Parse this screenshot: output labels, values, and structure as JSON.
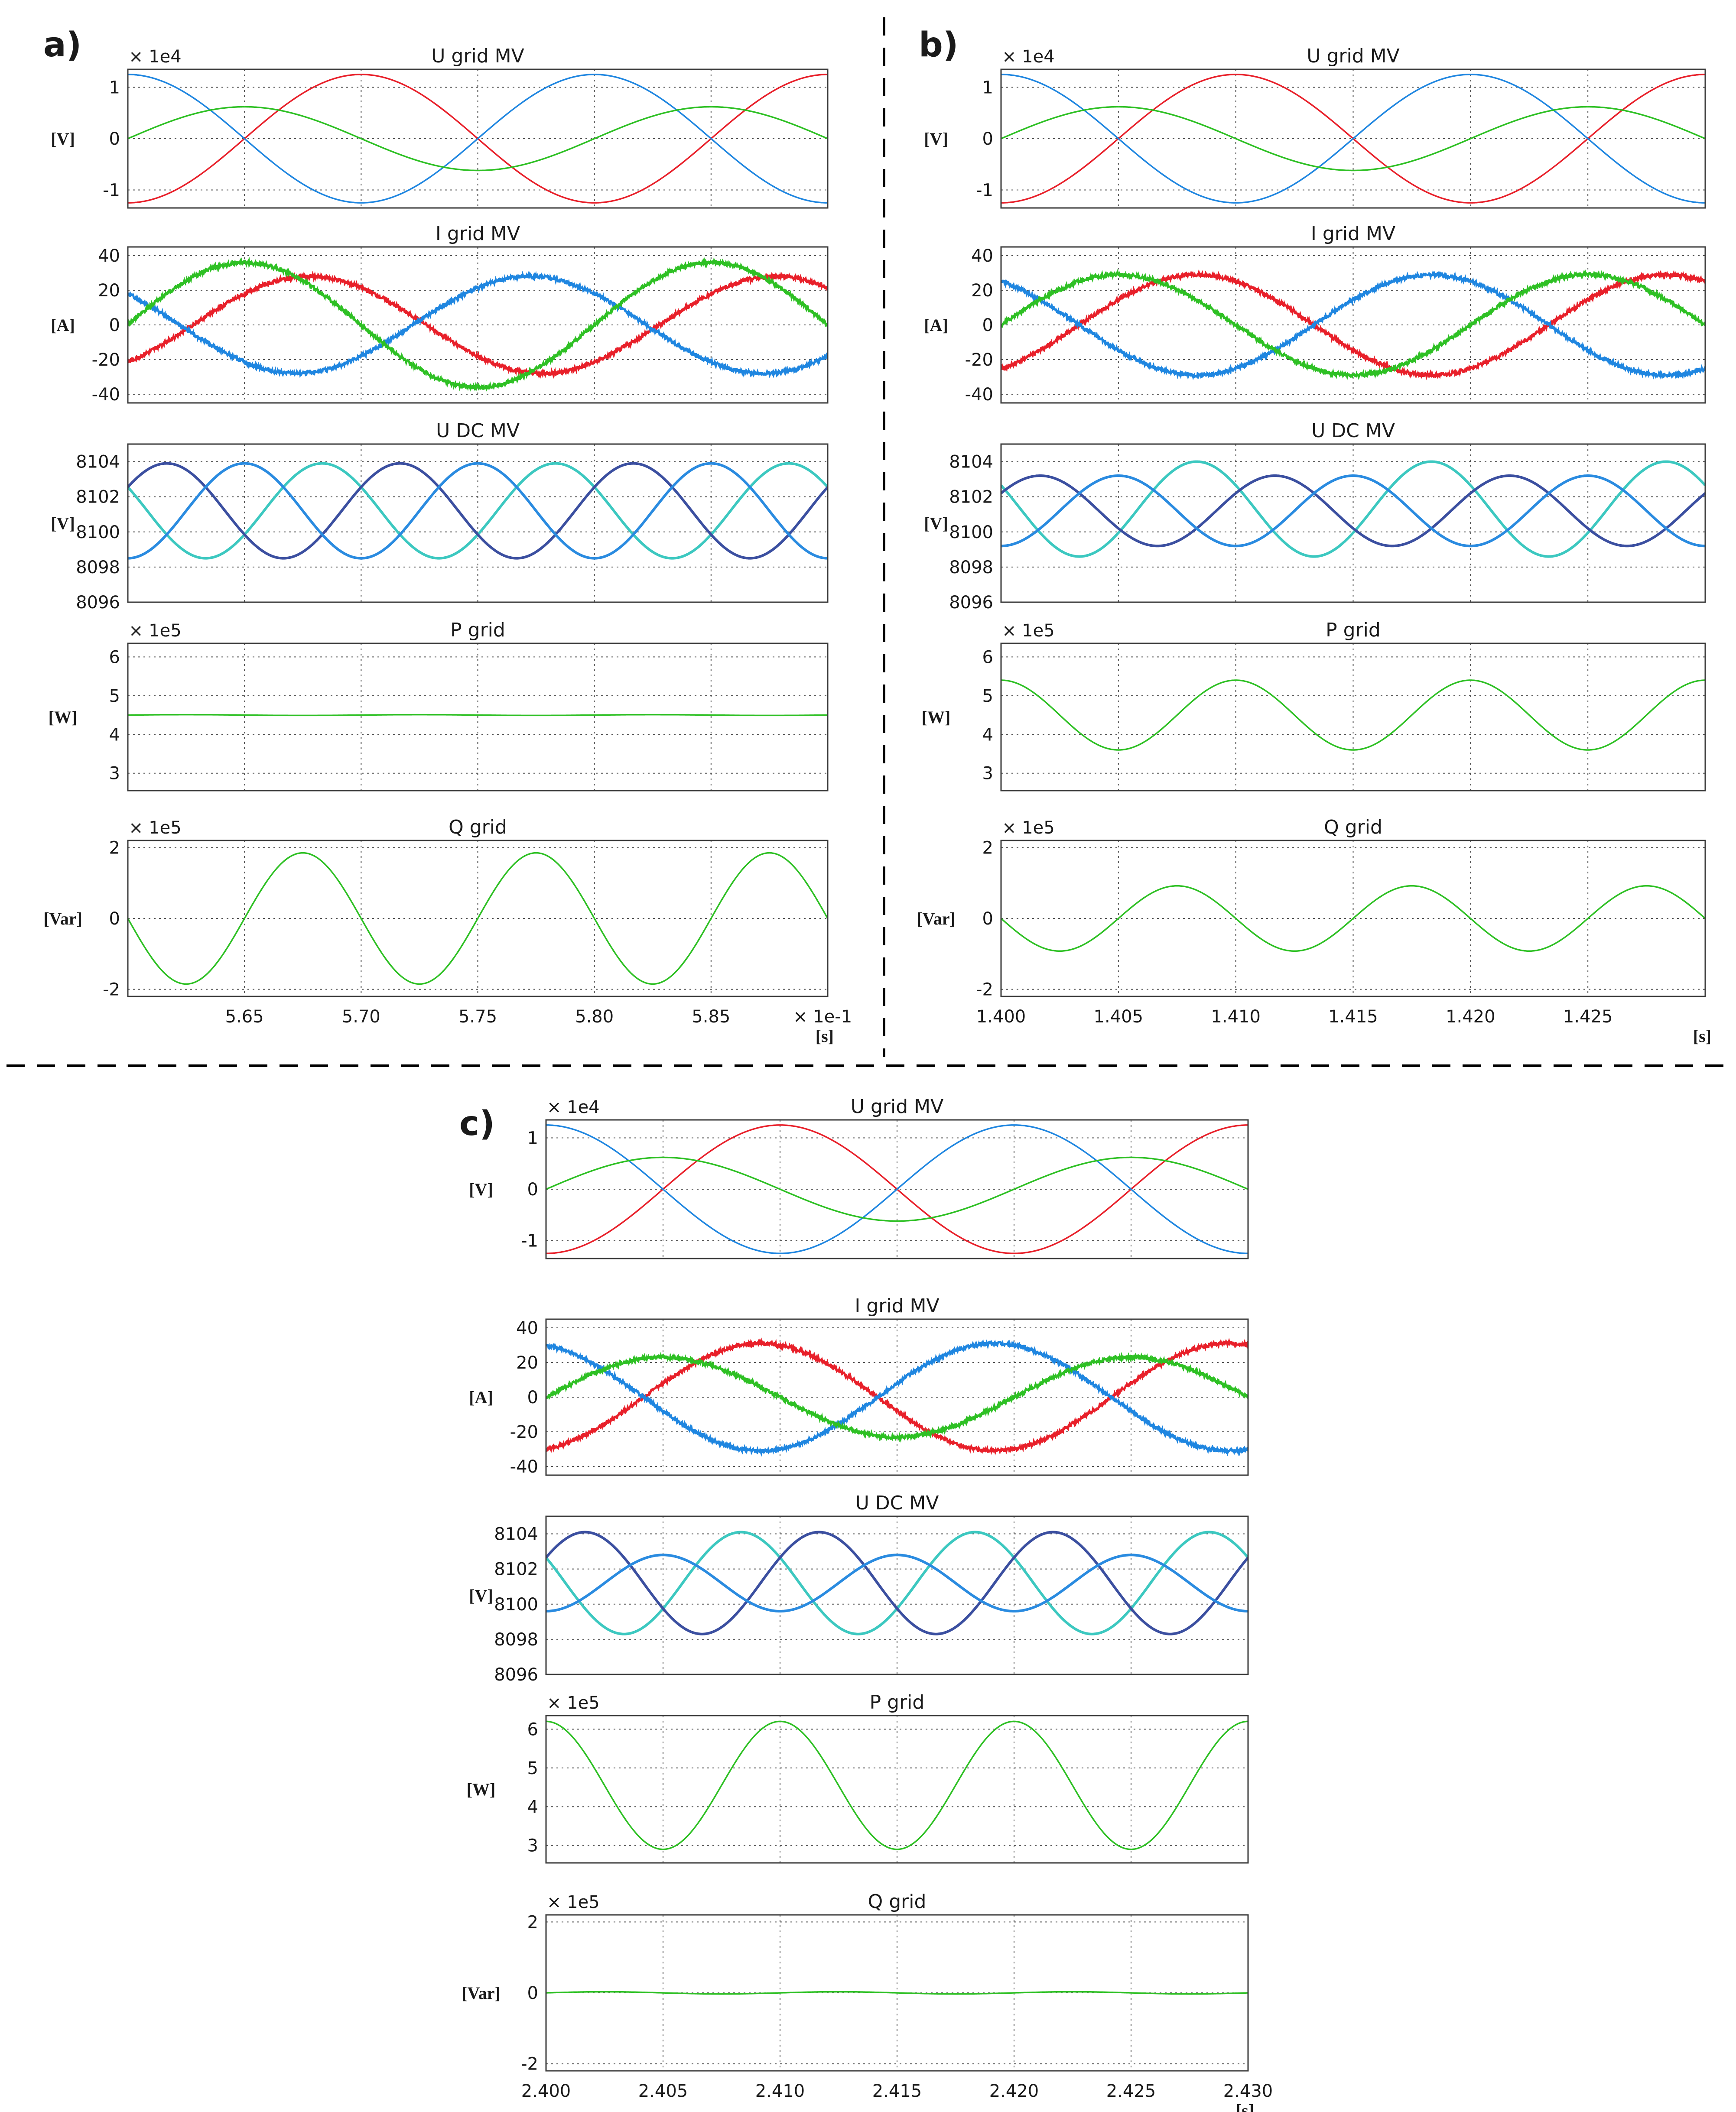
{
  "figure": {
    "separators": {
      "color": "#000000",
      "style": "dashed"
    }
  },
  "chart_data": [
    {
      "panel": "a)",
      "time_axis": {
        "start": 5.6,
        "end": 5.9,
        "ticks": [
          5.65,
          5.7,
          5.75,
          5.8,
          5.85
        ],
        "tick_labels": [
          "5.65",
          "5.70",
          "5.75",
          "5.80",
          "5.85"
        ],
        "grid": [
          5.65,
          5.7,
          5.75,
          5.8,
          5.85
        ],
        "scale_label": "× 1e-1",
        "unit_label": "[s]"
      },
      "subplots": [
        {
          "id": "u-grid",
          "type": "line",
          "title": "U grid MV",
          "ylabel": "[V]",
          "scale": "× 1e4",
          "ylim": [
            -1.35,
            1.35
          ],
          "yticks": [
            1,
            0,
            -1
          ],
          "ytick_labels": [
            "1",
            "0",
            "-1"
          ],
          "ygrid": [
            1,
            0,
            -1
          ],
          "series": [
            {
              "name": "phase-red",
              "color": "#e8202a",
              "waveform": "sine",
              "amplitude": 1.25,
              "offset": 0,
              "frequency_hz": 5,
              "phase_deg": -90
            },
            {
              "name": "phase-blue",
              "color": "#1f86e0",
              "waveform": "sine",
              "amplitude": 1.25,
              "offset": 0,
              "frequency_hz": 5,
              "phase_deg": 90
            },
            {
              "name": "phase-green",
              "color": "#2ec024",
              "waveform": "sine",
              "amplitude": 0.62,
              "offset": 0,
              "frequency_hz": 5,
              "phase_deg": 0
            }
          ]
        },
        {
          "id": "i-grid",
          "type": "line",
          "title": "I grid MV",
          "ylabel": "[A]",
          "scale": "",
          "ylim": [
            -45,
            45
          ],
          "yticks": [
            40,
            20,
            0,
            -20,
            -40
          ],
          "ytick_labels": [
            "40",
            "20",
            "0",
            "-20",
            "-40"
          ],
          "ygrid": [
            40,
            20,
            0,
            -20,
            -40
          ],
          "series": [
            {
              "name": "phase-red",
              "color": "#e8202a",
              "waveform": "sine",
              "amplitude": 28,
              "offset": 0,
              "frequency_hz": 5,
              "phase_deg": -50,
              "noise": 2.2
            },
            {
              "name": "phase-blue",
              "color": "#1f86e0",
              "waveform": "sine",
              "amplitude": 28,
              "offset": 0,
              "frequency_hz": 5,
              "phase_deg": 140,
              "noise": 2.2
            },
            {
              "name": "phase-green",
              "color": "#2ec024",
              "waveform": "sine",
              "amplitude": 36,
              "offset": 0,
              "frequency_hz": 5,
              "phase_deg": 0,
              "noise": 2.2
            }
          ]
        },
        {
          "id": "u-dc",
          "type": "line",
          "title": "U DC MV",
          "ylabel": "[V]",
          "scale": "",
          "ylim": [
            8096,
            8105
          ],
          "yticks": [
            8104,
            8102,
            8100,
            8098,
            8096
          ],
          "ytick_labels": [
            "8104",
            "8102",
            "8100",
            "8098",
            "8096"
          ],
          "ygrid": [
            8104,
            8102,
            8100,
            8098
          ],
          "series": [
            {
              "name": "cell-teal",
              "color": "#3cc8c0",
              "waveform": "sine",
              "amplitude": 2.7,
              "offset": 8101.2,
              "frequency_hz": 10,
              "phase_deg": 150
            },
            {
              "name": "cell-navy",
              "color": "#3b4fa0",
              "waveform": "sine",
              "amplitude": 2.7,
              "offset": 8101.2,
              "frequency_hz": 10,
              "phase_deg": 30
            },
            {
              "name": "cell-sky",
              "color": "#2a8be0",
              "waveform": "sine",
              "amplitude": 2.7,
              "offset": 8101.2,
              "frequency_hz": 10,
              "phase_deg": -90
            }
          ]
        },
        {
          "id": "p-grid",
          "type": "line",
          "title": "P grid",
          "ylabel": "[W]",
          "scale": "× 1e5",
          "ylim": [
            2.55,
            6.35
          ],
          "yticks": [
            6,
            5,
            4,
            3
          ],
          "ytick_labels": [
            "6",
            "5",
            "4",
            "3"
          ],
          "ygrid": [
            6,
            5,
            4,
            3
          ],
          "series": [
            {
              "name": "active-power",
              "color": "#2ec024",
              "waveform": "sine",
              "amplitude": 0.01,
              "offset": 4.5,
              "frequency_hz": 10,
              "phase_deg": 0
            }
          ]
        },
        {
          "id": "q-grid",
          "type": "line",
          "title": "Q grid",
          "ylabel": "[Var]",
          "scale": "× 1e5",
          "ylim": [
            -2.2,
            2.2
          ],
          "yticks": [
            2,
            0,
            -2
          ],
          "ytick_labels": [
            "2",
            "0",
            "-2"
          ],
          "ygrid": [
            2,
            0,
            -2
          ],
          "series": [
            {
              "name": "reactive-power",
              "color": "#2ec024",
              "waveform": "sine",
              "amplitude": 1.85,
              "offset": 0,
              "frequency_hz": 10,
              "phase_deg": 180
            }
          ]
        }
      ]
    },
    {
      "panel": "b)",
      "time_axis": {
        "start": 1.4,
        "end": 1.43,
        "ticks": [
          1.4,
          1.405,
          1.41,
          1.415,
          1.42,
          1.425
        ],
        "tick_labels": [
          "1.400",
          "1.405",
          "1.410",
          "1.415",
          "1.420",
          "1.425"
        ],
        "grid": [
          1.405,
          1.41,
          1.415,
          1.42,
          1.425
        ],
        "scale_label": "",
        "unit_label": "[s]"
      },
      "subplots": [
        {
          "id": "u-grid",
          "type": "line",
          "title": "U grid MV",
          "ylabel": "[V]",
          "scale": "× 1e4",
          "ylim": [
            -1.35,
            1.35
          ],
          "yticks": [
            1,
            0,
            -1
          ],
          "ytick_labels": [
            "1",
            "0",
            "-1"
          ],
          "ygrid": [
            1,
            0,
            -1
          ],
          "series": [
            {
              "name": "phase-red",
              "color": "#e8202a",
              "waveform": "sine",
              "amplitude": 1.25,
              "offset": 0,
              "frequency_hz": 50,
              "phase_deg": -90
            },
            {
              "name": "phase-blue",
              "color": "#1f86e0",
              "waveform": "sine",
              "amplitude": 1.25,
              "offset": 0,
              "frequency_hz": 50,
              "phase_deg": 90
            },
            {
              "name": "phase-green",
              "color": "#2ec024",
              "waveform": "sine",
              "amplitude": 0.62,
              "offset": 0,
              "frequency_hz": 50,
              "phase_deg": 0
            }
          ]
        },
        {
          "id": "i-grid",
          "type": "line",
          "title": "I grid MV",
          "ylabel": "[A]",
          "scale": "",
          "ylim": [
            -45,
            45
          ],
          "yticks": [
            40,
            20,
            0,
            -20,
            -40
          ],
          "ytick_labels": [
            "40",
            "20",
            "0",
            "-20",
            "-40"
          ],
          "ygrid": [
            40,
            20,
            0,
            -20,
            -40
          ],
          "series": [
            {
              "name": "phase-red",
              "color": "#e8202a",
              "waveform": "sine",
              "amplitude": 29,
              "offset": 0,
              "frequency_hz": 50,
              "phase_deg": -60,
              "noise": 2.2
            },
            {
              "name": "phase-blue",
              "color": "#1f86e0",
              "waveform": "sine",
              "amplitude": 29,
              "offset": 0,
              "frequency_hz": 50,
              "phase_deg": 120,
              "noise": 2.2
            },
            {
              "name": "phase-green",
              "color": "#2ec024",
              "waveform": "sine",
              "amplitude": 29,
              "offset": 0,
              "frequency_hz": 50,
              "phase_deg": 0,
              "noise": 2.2
            }
          ]
        },
        {
          "id": "u-dc",
          "type": "line",
          "title": "U DC MV",
          "ylabel": "[V]",
          "scale": "",
          "ylim": [
            8096,
            8105
          ],
          "yticks": [
            8104,
            8102,
            8100,
            8098,
            8096
          ],
          "ytick_labels": [
            "8104",
            "8102",
            "8100",
            "8098",
            "8096"
          ],
          "ygrid": [
            8104,
            8102,
            8100,
            8098
          ],
          "series": [
            {
              "name": "cell-teal",
              "color": "#3cc8c0",
              "waveform": "sine",
              "amplitude": 2.7,
              "offset": 8101.3,
              "frequency_hz": 100,
              "phase_deg": 150
            },
            {
              "name": "cell-navy",
              "color": "#3b4fa0",
              "waveform": "sine",
              "amplitude": 2.0,
              "offset": 8101.2,
              "frequency_hz": 100,
              "phase_deg": 30
            },
            {
              "name": "cell-sky",
              "color": "#2a8be0",
              "waveform": "sine",
              "amplitude": 2.0,
              "offset": 8101.2,
              "frequency_hz": 100,
              "phase_deg": -90
            }
          ]
        },
        {
          "id": "p-grid",
          "type": "line",
          "title": "P grid",
          "ylabel": "[W]",
          "scale": "× 1e5",
          "ylim": [
            2.55,
            6.35
          ],
          "yticks": [
            6,
            5,
            4,
            3
          ],
          "ytick_labels": [
            "6",
            "5",
            "4",
            "3"
          ],
          "ygrid": [
            6,
            5,
            4,
            3
          ],
          "series": [
            {
              "name": "active-power",
              "color": "#2ec024",
              "waveform": "sine",
              "amplitude": 0.9,
              "offset": 4.5,
              "frequency_hz": 100,
              "phase_deg": 90
            }
          ]
        },
        {
          "id": "q-grid",
          "type": "line",
          "title": "Q grid",
          "ylabel": "[Var]",
          "scale": "× 1e5",
          "ylim": [
            -2.2,
            2.2
          ],
          "yticks": [
            2,
            0,
            -2
          ],
          "ytick_labels": [
            "2",
            "0",
            "-2"
          ],
          "ygrid": [
            2,
            0,
            -2
          ],
          "series": [
            {
              "name": "reactive-power",
              "color": "#2ec024",
              "waveform": "sine",
              "amplitude": 0.92,
              "offset": 0,
              "frequency_hz": 100,
              "phase_deg": 180
            }
          ]
        }
      ]
    },
    {
      "panel": "c)",
      "time_axis": {
        "start": 2.4,
        "end": 2.43,
        "ticks": [
          2.4,
          2.405,
          2.41,
          2.415,
          2.42,
          2.425,
          2.43
        ],
        "tick_labels": [
          "2.400",
          "2.405",
          "2.410",
          "2.415",
          "2.420",
          "2.425",
          "2.430"
        ],
        "grid": [
          2.405,
          2.41,
          2.415,
          2.42,
          2.425
        ],
        "scale_label": "",
        "unit_label": "[s]"
      },
      "subplots": [
        {
          "id": "u-grid",
          "type": "line",
          "title": "U grid MV",
          "ylabel": "[V]",
          "scale": "× 1e4",
          "ylim": [
            -1.35,
            1.35
          ],
          "yticks": [
            1,
            0,
            -1
          ],
          "ytick_labels": [
            "1",
            "0",
            "-1"
          ],
          "ygrid": [
            1,
            0,
            -1
          ],
          "series": [
            {
              "name": "phase-red",
              "color": "#e8202a",
              "waveform": "sine",
              "amplitude": 1.25,
              "offset": 0,
              "frequency_hz": 50,
              "phase_deg": -90
            },
            {
              "name": "phase-blue",
              "color": "#1f86e0",
              "waveform": "sine",
              "amplitude": 1.25,
              "offset": 0,
              "frequency_hz": 50,
              "phase_deg": 90
            },
            {
              "name": "phase-green",
              "color": "#2ec024",
              "waveform": "sine",
              "amplitude": 0.62,
              "offset": 0,
              "frequency_hz": 50,
              "phase_deg": 0
            }
          ]
        },
        {
          "id": "i-grid",
          "type": "line",
          "title": "I grid MV",
          "ylabel": "[A]",
          "scale": "",
          "ylim": [
            -45,
            45
          ],
          "yticks": [
            40,
            20,
            0,
            -20,
            -40
          ],
          "ytick_labels": [
            "40",
            "20",
            "0",
            "-20",
            "-40"
          ],
          "ygrid": [
            40,
            20,
            0,
            -20,
            -40
          ],
          "series": [
            {
              "name": "phase-red",
              "color": "#e8202a",
              "waveform": "sine",
              "amplitude": 31,
              "offset": 0,
              "frequency_hz": 50,
              "phase_deg": -75,
              "noise": 2.2
            },
            {
              "name": "phase-blue",
              "color": "#1f86e0",
              "waveform": "sine",
              "amplitude": 31,
              "offset": 0,
              "frequency_hz": 50,
              "phase_deg": 105,
              "noise": 2.2
            },
            {
              "name": "phase-green",
              "color": "#2ec024",
              "waveform": "sine",
              "amplitude": 23,
              "offset": 0,
              "frequency_hz": 50,
              "phase_deg": 0,
              "noise": 2.2
            }
          ]
        },
        {
          "id": "u-dc",
          "type": "line",
          "title": "U DC MV",
          "ylabel": "[V]",
          "scale": "",
          "ylim": [
            8096,
            8105
          ],
          "yticks": [
            8104,
            8102,
            8100,
            8098,
            8096
          ],
          "ytick_labels": [
            "8104",
            "8102",
            "8100",
            "8098",
            "8096"
          ],
          "ygrid": [
            8104,
            8102,
            8100,
            8098
          ],
          "series": [
            {
              "name": "cell-teal",
              "color": "#3cc8c0",
              "waveform": "sine",
              "amplitude": 2.9,
              "offset": 8101.2,
              "frequency_hz": 100,
              "phase_deg": 150
            },
            {
              "name": "cell-navy",
              "color": "#3b4fa0",
              "waveform": "sine",
              "amplitude": 2.9,
              "offset": 8101.2,
              "frequency_hz": 100,
              "phase_deg": 30
            },
            {
              "name": "cell-sky",
              "color": "#2a8be0",
              "waveform": "sine",
              "amplitude": 1.6,
              "offset": 8101.2,
              "frequency_hz": 100,
              "phase_deg": -90
            }
          ]
        },
        {
          "id": "p-grid",
          "type": "line",
          "title": "P grid",
          "ylabel": "[W]",
          "scale": "× 1e5",
          "ylim": [
            2.55,
            6.35
          ],
          "yticks": [
            6,
            5,
            4,
            3
          ],
          "ytick_labels": [
            "6",
            "5",
            "4",
            "3"
          ],
          "ygrid": [
            6,
            5,
            4,
            3
          ],
          "series": [
            {
              "name": "active-power",
              "color": "#2ec024",
              "waveform": "sine",
              "amplitude": 1.65,
              "offset": 4.55,
              "frequency_hz": 100,
              "phase_deg": 90
            }
          ]
        },
        {
          "id": "q-grid",
          "type": "line",
          "title": "Q grid",
          "ylabel": "[Var]",
          "scale": "× 1e5",
          "ylim": [
            -2.2,
            2.2
          ],
          "yticks": [
            2,
            0,
            -2
          ],
          "ytick_labels": [
            "2",
            "0",
            "-2"
          ],
          "ygrid": [
            2,
            0,
            -2
          ],
          "series": [
            {
              "name": "reactive-power",
              "color": "#2ec024",
              "waveform": "sine",
              "amplitude": 0.03,
              "offset": 0,
              "frequency_hz": 100,
              "phase_deg": 0
            }
          ]
        }
      ]
    }
  ]
}
